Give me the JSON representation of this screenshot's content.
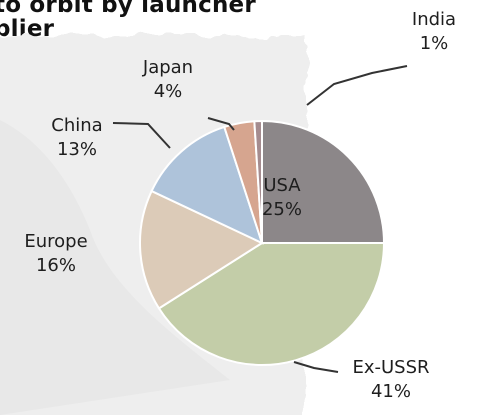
{
  "chart_data": {
    "type": "pie",
    "title_lines": [
      "to orbit by launcher",
      "plier"
    ],
    "slices": [
      {
        "label": "USA",
        "value": 25,
        "value_text": "25%",
        "color": "#8c8789"
      },
      {
        "label": "Ex-USSR",
        "value": 41,
        "value_text": "41%",
        "color": "#c3cda8"
      },
      {
        "label": "Europe",
        "value": 16,
        "value_text": "16%",
        "color": "#dccbb8"
      },
      {
        "label": "China",
        "value": 13,
        "value_text": "13%",
        "color": "#aec3da"
      },
      {
        "label": "Japan",
        "value": 4,
        "value_text": "4%",
        "color": "#d6a58f"
      },
      {
        "label": "India",
        "value": 1,
        "value_text": "1%",
        "color": "#a58c8f"
      }
    ]
  }
}
